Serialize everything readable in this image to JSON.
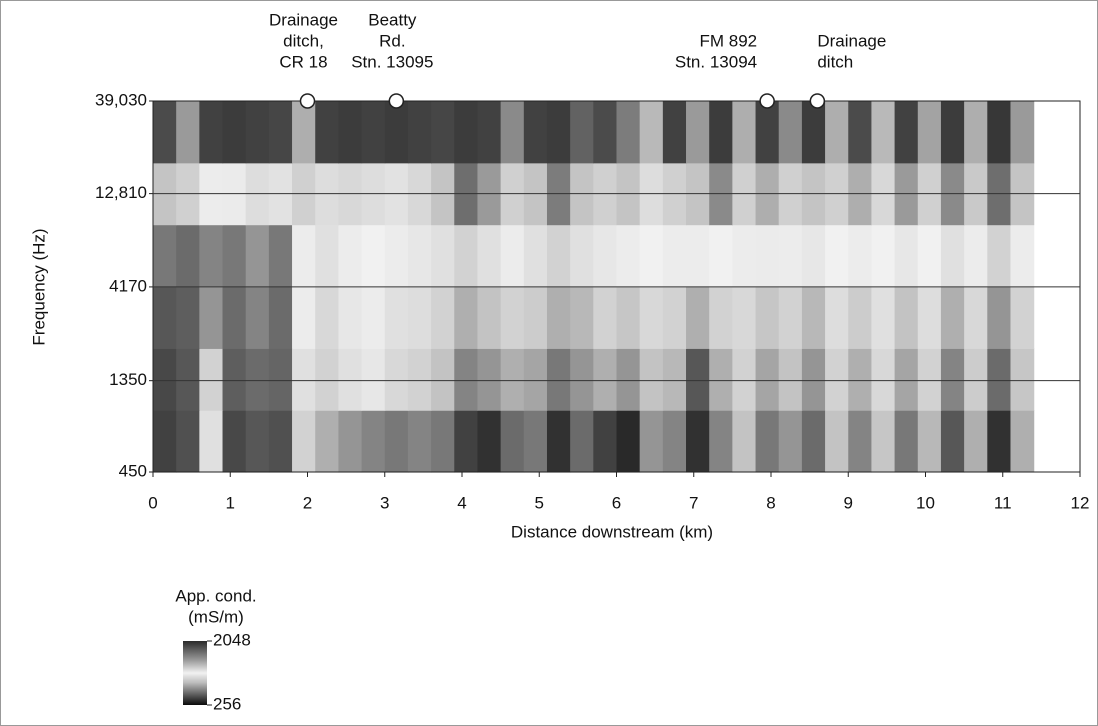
{
  "chart_data": {
    "type": "heatmap",
    "xlabel": "Distance downstream (km)",
    "ylabel": "Frequency (Hz)",
    "xlim": [
      0,
      12
    ],
    "xticks": [
      0,
      1,
      2,
      3,
      4,
      5,
      6,
      7,
      8,
      9,
      10,
      11,
      12
    ],
    "ylim": [
      450,
      39030
    ],
    "yscale": "log",
    "yticks": [
      450,
      1350,
      4170,
      {
        "value": 12810,
        "label": "12,810"
      },
      {
        "value": 39030,
        "label": "39,030"
      }
    ],
    "grid": true,
    "x": [
      0.15,
      0.45,
      0.75,
      1.05,
      1.35,
      1.65,
      1.95,
      2.25,
      2.55,
      2.85,
      3.15,
      3.45,
      3.75,
      4.05,
      4.35,
      4.65,
      4.95,
      5.25,
      5.55,
      5.85,
      6.15,
      6.45,
      6.75,
      7.05,
      7.35,
      7.65,
      7.95,
      8.25,
      8.55,
      8.85,
      9.15,
      9.45,
      9.75,
      10.05,
      10.35,
      10.65,
      10.95,
      11.25
    ],
    "y": [
      653,
      1373,
      2890,
      6083,
      12800,
      26940
    ],
    "z": [
      [
        320,
        340,
        650,
        330,
        350,
        340,
        600,
        500,
        450,
        420,
        400,
        420,
        400,
        320,
        300,
        380,
        400,
        300,
        380,
        320,
        290,
        450,
        420,
        300,
        420,
        550,
        400,
        450,
        380,
        550,
        420,
        560,
        400,
        520,
        350,
        500,
        300,
        500
      ],
      [
        330,
        350,
        600,
        360,
        380,
        370,
        650,
        600,
        650,
        680,
        620,
        600,
        550,
        420,
        450,
        500,
        480,
        400,
        450,
        500,
        450,
        550,
        520,
        350,
        500,
        600,
        480,
        550,
        450,
        600,
        500,
        620,
        480,
        600,
        420,
        580,
        380,
        560
      ],
      [
        350,
        360,
        450,
        380,
        420,
        380,
        700,
        620,
        680,
        700,
        650,
        640,
        600,
        500,
        550,
        600,
        580,
        500,
        520,
        600,
        560,
        620,
        600,
        500,
        600,
        620,
        560,
        600,
        520,
        640,
        580,
        650,
        550,
        640,
        500,
        620,
        450,
        600
      ],
      [
        400,
        380,
        420,
        400,
        450,
        400,
        700,
        650,
        700,
        720,
        700,
        680,
        650,
        600,
        650,
        700,
        650,
        600,
        650,
        680,
        700,
        720,
        700,
        700,
        720,
        700,
        750,
        700,
        680,
        720,
        700,
        720,
        680,
        720,
        650,
        700,
        600,
        700
      ],
      [
        900,
        850,
        700,
        750,
        800,
        780,
        850,
        800,
        820,
        800,
        780,
        820,
        900,
        1400,
        1100,
        850,
        900,
        1300,
        900,
        850,
        900,
        800,
        850,
        900,
        1200,
        850,
        1000,
        850,
        900,
        850,
        1000,
        820,
        1100,
        850,
        1200,
        880,
        1400,
        900
      ],
      [
        1700,
        1100,
        1800,
        1850,
        1800,
        1750,
        1000,
        1800,
        1850,
        1800,
        1850,
        1800,
        1750,
        1850,
        1800,
        1200,
        1800,
        1850,
        1500,
        1700,
        1300,
        950,
        1800,
        1100,
        1850,
        1000,
        1800,
        1200,
        1850,
        1000,
        1700,
        950,
        1800,
        1050,
        1850,
        1000,
        1900,
        1100
      ]
    ],
    "colorbar": {
      "title": [
        "App. cond.",
        "(mS/m)"
      ],
      "clim": [
        256,
        2048
      ],
      "scale": "log",
      "ticks": [
        2048,
        256
      ],
      "colormap": [
        [
          0,
          "#0a0a0a"
        ],
        [
          0.35,
          "#bdbdbd"
        ],
        [
          0.5,
          "#f2f2f2"
        ],
        [
          0.7,
          "#9a9a9a"
        ],
        [
          1,
          "#2a2a2a"
        ]
      ]
    },
    "annotations": [
      {
        "x": 2,
        "lines": [
          "Drainage",
          "ditch,",
          "CR 18"
        ],
        "align": "center"
      },
      {
        "x": 3.15,
        "lines": [
          "Beatty",
          "Rd.",
          "Stn. 13095"
        ],
        "align": "center"
      },
      {
        "x": 7.95,
        "lines": [
          "FM 892",
          "Stn. 13094"
        ],
        "align": "end"
      },
      {
        "x": 8.6,
        "lines": [
          "Drainage",
          "ditch"
        ],
        "align": "start"
      }
    ]
  }
}
